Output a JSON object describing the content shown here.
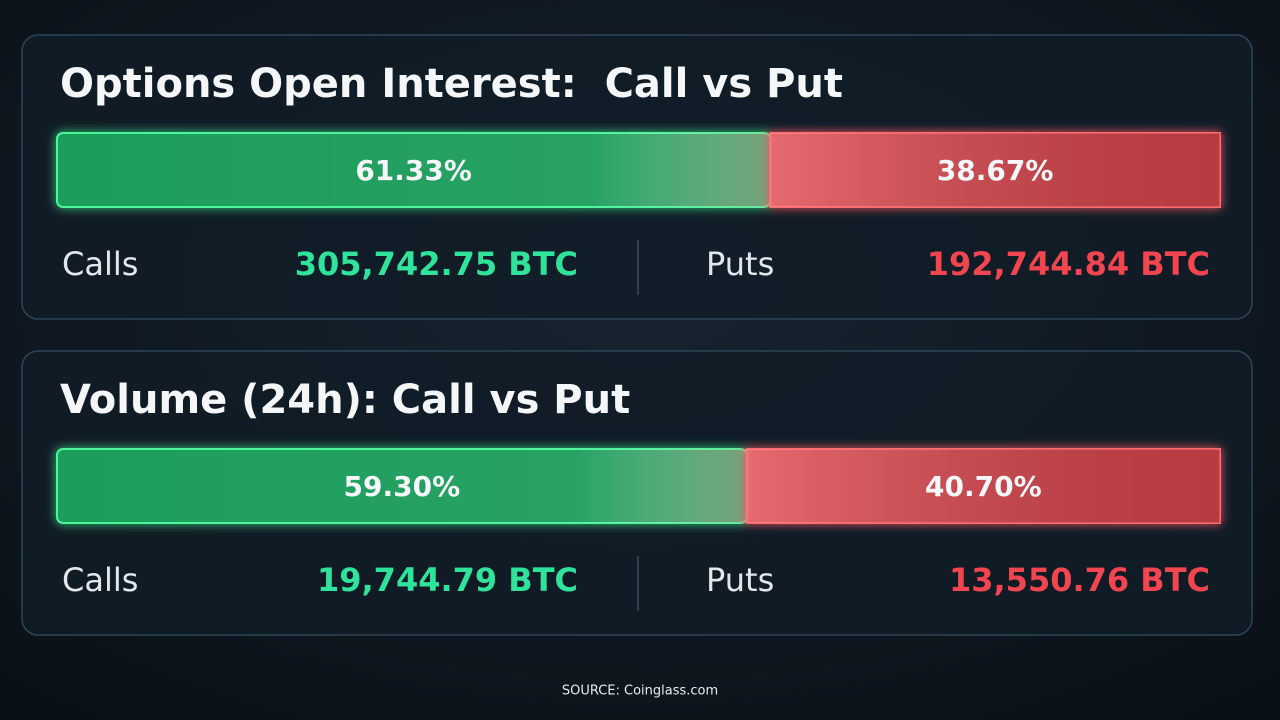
{
  "chart_data": [
    {
      "type": "stacked-bar",
      "title": "Options Open Interest:  Call vs Put",
      "xlim": [
        0,
        100
      ],
      "series": [
        {
          "name": "Calls",
          "color": "#1f9d5c",
          "values": [
            61.33
          ],
          "value_labels": [
            "61.33%"
          ],
          "amount": "305,742.75 BTC",
          "amount_color": "#2fe39b"
        },
        {
          "name": "Puts",
          "color": "#d9454d",
          "values": [
            38.67
          ],
          "value_labels": [
            "38.67%"
          ],
          "amount": "192,744.84 BTC",
          "amount_color": "#f1454f"
        }
      ]
    },
    {
      "type": "stacked-bar",
      "title": "Volume (24h): Call vs Put",
      "xlim": [
        0,
        100
      ],
      "series": [
        {
          "name": "Calls",
          "color": "#1f9d5c",
          "values": [
            59.3
          ],
          "value_labels": [
            "59.30%"
          ],
          "amount": "19,744.79 BTC",
          "amount_color": "#2fe39b"
        },
        {
          "name": "Puts",
          "color": "#d9454d",
          "values": [
            40.7
          ],
          "value_labels": [
            "40.70%"
          ],
          "amount": "13,550.76 BTC",
          "amount_color": "#f1454f"
        }
      ]
    }
  ],
  "source": "SOURCE: Coinglass.com"
}
